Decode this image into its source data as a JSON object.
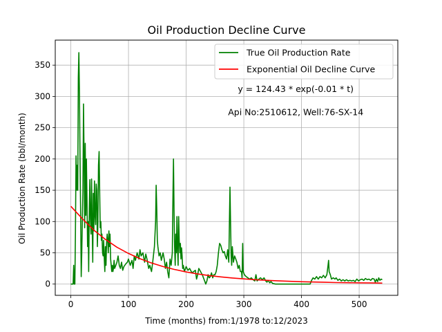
{
  "chart_data": {
    "type": "line",
    "title": "Oil Production Decline Curve",
    "xlabel": "Time (months) from:1/1978 to:12/2023",
    "ylabel": "Oil Production Rate (bbl/month)",
    "xlim": [
      -27,
      567
    ],
    "ylim": [
      -18,
      390
    ],
    "xticks": [
      0,
      100,
      200,
      300,
      400,
      500
    ],
    "yticks": [
      0,
      50,
      100,
      150,
      200,
      250,
      300,
      350
    ],
    "grid": true,
    "legend": "top-right",
    "annotations": [
      {
        "text": "y = 124.43 * exp(-0.01 * t)",
        "x": 390,
        "y": 307
      },
      {
        "text": "Api No:2510612, Well:76-SX-14",
        "x": 390,
        "y": 270
      }
    ],
    "series": [
      {
        "name": "True Oil Production Rate",
        "color": "#008000",
        "points": [
          [
            0,
            0
          ],
          [
            2,
            0
          ],
          [
            4,
            0
          ],
          [
            5,
            30
          ],
          [
            6,
            0
          ],
          [
            7,
            0
          ],
          [
            8,
            80
          ],
          [
            9,
            205
          ],
          [
            10,
            150
          ],
          [
            11,
            190
          ],
          [
            12,
            150
          ],
          [
            13,
            330
          ],
          [
            14,
            370
          ],
          [
            15,
            300
          ],
          [
            16,
            200
          ],
          [
            17,
            120
          ],
          [
            18,
            12
          ],
          [
            19,
            50
          ],
          [
            20,
            100
          ],
          [
            21,
            150
          ],
          [
            22,
            288
          ],
          [
            23,
            200
          ],
          [
            24,
            90
          ],
          [
            25,
            225
          ],
          [
            26,
            110
          ],
          [
            27,
            200
          ],
          [
            28,
            140
          ],
          [
            29,
            60
          ],
          [
            30,
            100
          ],
          [
            31,
            20
          ],
          [
            32,
            120
          ],
          [
            33,
            167
          ],
          [
            34,
            105
          ],
          [
            35,
            80
          ],
          [
            36,
            168
          ],
          [
            37,
            100
          ],
          [
            38,
            35
          ],
          [
            39,
            145
          ],
          [
            40,
            85
          ],
          [
            41,
            165
          ],
          [
            42,
            110
          ],
          [
            43,
            95
          ],
          [
            44,
            160
          ],
          [
            45,
            150
          ],
          [
            46,
            60
          ],
          [
            47,
            100
          ],
          [
            48,
            190
          ],
          [
            49,
            212
          ],
          [
            50,
            150
          ],
          [
            51,
            90
          ],
          [
            52,
            100
          ],
          [
            53,
            70
          ],
          [
            54,
            80
          ],
          [
            55,
            50
          ],
          [
            56,
            45
          ],
          [
            57,
            70
          ],
          [
            58,
            40
          ],
          [
            59,
            20
          ],
          [
            60,
            60
          ],
          [
            61,
            30
          ],
          [
            62,
            65
          ],
          [
            63,
            80
          ],
          [
            64,
            70
          ],
          [
            65,
            50
          ],
          [
            66,
            85
          ],
          [
            67,
            60
          ],
          [
            68,
            80
          ],
          [
            69,
            40
          ],
          [
            70,
            30
          ],
          [
            71,
            20
          ],
          [
            72,
            30
          ],
          [
            73,
            20
          ],
          [
            74,
            25
          ],
          [
            75,
            38
          ],
          [
            76,
            25
          ],
          [
            78,
            30
          ],
          [
            80,
            35
          ],
          [
            82,
            45
          ],
          [
            84,
            30
          ],
          [
            86,
            25
          ],
          [
            88,
            35
          ],
          [
            90,
            22
          ],
          [
            92,
            28
          ],
          [
            95,
            32
          ],
          [
            98,
            35
          ],
          [
            100,
            40
          ],
          [
            103,
            30
          ],
          [
            106,
            38
          ],
          [
            108,
            25
          ],
          [
            110,
            45
          ],
          [
            112,
            38
          ],
          [
            115,
            50
          ],
          [
            118,
            40
          ],
          [
            120,
            55
          ],
          [
            122,
            45
          ],
          [
            125,
            50
          ],
          [
            128,
            35
          ],
          [
            130,
            48
          ],
          [
            132,
            40
          ],
          [
            135,
            25
          ],
          [
            137,
            30
          ],
          [
            140,
            20
          ],
          [
            142,
            35
          ],
          [
            145,
            60
          ],
          [
            147,
            100
          ],
          [
            148,
            158
          ],
          [
            149,
            120
          ],
          [
            150,
            70
          ],
          [
            151,
            60
          ],
          [
            153,
            45
          ],
          [
            155,
            50
          ],
          [
            157,
            38
          ],
          [
            160,
            50
          ],
          [
            162,
            40
          ],
          [
            164,
            25
          ],
          [
            166,
            35
          ],
          [
            168,
            20
          ],
          [
            170,
            10
          ],
          [
            172,
            40
          ],
          [
            174,
            30
          ],
          [
            176,
            50
          ],
          [
            177,
            130
          ],
          [
            178,
            200
          ],
          [
            179,
            120
          ],
          [
            180,
            60
          ],
          [
            181,
            30
          ],
          [
            182,
            80
          ],
          [
            183,
            50
          ],
          [
            184,
            108
          ],
          [
            185,
            60
          ],
          [
            186,
            30
          ],
          [
            187,
            108
          ],
          [
            188,
            70
          ],
          [
            189,
            50
          ],
          [
            190,
            65
          ],
          [
            191,
            40
          ],
          [
            192,
            58
          ],
          [
            193,
            45
          ],
          [
            194,
            25
          ],
          [
            195,
            30
          ],
          [
            197,
            20
          ],
          [
            200,
            28
          ],
          [
            203,
            22
          ],
          [
            206,
            25
          ],
          [
            210,
            18
          ],
          [
            213,
            20
          ],
          [
            216,
            22
          ],
          [
            218,
            8
          ],
          [
            220,
            15
          ],
          [
            222,
            25
          ],
          [
            225,
            20
          ],
          [
            228,
            15
          ],
          [
            230,
            10
          ],
          [
            232,
            5
          ],
          [
            234,
            0
          ],
          [
            236,
            5
          ],
          [
            238,
            15
          ],
          [
            240,
            10
          ],
          [
            242,
            12
          ],
          [
            244,
            18
          ],
          [
            246,
            10
          ],
          [
            248,
            15
          ],
          [
            250,
            15
          ],
          [
            252,
            20
          ],
          [
            254,
            30
          ],
          [
            256,
            50
          ],
          [
            258,
            65
          ],
          [
            260,
            62
          ],
          [
            262,
            55
          ],
          [
            264,
            50
          ],
          [
            266,
            52
          ],
          [
            268,
            45
          ],
          [
            270,
            40
          ],
          [
            272,
            55
          ],
          [
            274,
            35
          ],
          [
            275,
            100
          ],
          [
            276,
            155
          ],
          [
            277,
            100
          ],
          [
            278,
            45
          ],
          [
            279,
            30
          ],
          [
            280,
            60
          ],
          [
            282,
            35
          ],
          [
            284,
            45
          ],
          [
            286,
            40
          ],
          [
            288,
            35
          ],
          [
            290,
            25
          ],
          [
            292,
            30
          ],
          [
            294,
            20
          ],
          [
            296,
            20
          ],
          [
            297,
            10
          ],
          [
            298,
            65
          ],
          [
            299,
            20
          ],
          [
            301,
            15
          ],
          [
            304,
            12
          ],
          [
            307,
            10
          ],
          [
            310,
            8
          ],
          [
            313,
            10
          ],
          [
            316,
            7
          ],
          [
            319,
            5
          ],
          [
            321,
            15
          ],
          [
            323,
            5
          ],
          [
            326,
            8
          ],
          [
            329,
            10
          ],
          [
            332,
            7
          ],
          [
            335,
            10
          ],
          [
            338,
            5
          ],
          [
            340,
            3
          ],
          [
            342,
            6
          ],
          [
            345,
            2
          ],
          [
            347,
            4
          ],
          [
            350,
            1
          ],
          [
            355,
            0
          ],
          [
            360,
            0
          ],
          [
            370,
            0
          ],
          [
            380,
            0
          ],
          [
            390,
            0
          ],
          [
            400,
            0
          ],
          [
            410,
            0
          ],
          [
            415,
            0
          ],
          [
            417,
            5
          ],
          [
            420,
            10
          ],
          [
            423,
            8
          ],
          [
            426,
            12
          ],
          [
            429,
            8
          ],
          [
            432,
            12
          ],
          [
            435,
            10
          ],
          [
            438,
            14
          ],
          [
            441,
            10
          ],
          [
            444,
            15
          ],
          [
            446,
            30
          ],
          [
            447,
            38
          ],
          [
            448,
            20
          ],
          [
            450,
            15
          ],
          [
            452,
            8
          ],
          [
            455,
            10
          ],
          [
            458,
            8
          ],
          [
            460,
            10
          ],
          [
            463,
            6
          ],
          [
            466,
            8
          ],
          [
            469,
            5
          ],
          [
            472,
            7
          ],
          [
            475,
            5
          ],
          [
            478,
            7
          ],
          [
            481,
            5
          ],
          [
            484,
            6
          ],
          [
            487,
            5
          ],
          [
            490,
            6
          ],
          [
            493,
            4
          ],
          [
            496,
            8
          ],
          [
            499,
            5
          ],
          [
            502,
            7
          ],
          [
            505,
            8
          ],
          [
            508,
            6
          ],
          [
            511,
            9
          ],
          [
            514,
            7
          ],
          [
            517,
            8
          ],
          [
            520,
            6
          ],
          [
            523,
            9
          ],
          [
            526,
            8
          ],
          [
            528,
            3
          ],
          [
            530,
            8
          ],
          [
            532,
            4
          ],
          [
            534,
            10
          ],
          [
            536,
            6
          ],
          [
            538,
            8
          ],
          [
            540,
            7
          ]
        ]
      },
      {
        "name": "Exponential Oil Decline Curve",
        "color": "#ff0000",
        "points": [
          [
            0,
            124.43
          ],
          [
            20,
            104.5
          ],
          [
            40,
            86.3
          ],
          [
            60,
            71.4
          ],
          [
            80,
            59.0
          ],
          [
            100,
            49.0
          ],
          [
            120,
            40.6
          ],
          [
            140,
            33.7
          ],
          [
            160,
            28.0
          ],
          [
            180,
            23.3
          ],
          [
            200,
            19.4
          ],
          [
            220,
            16.2
          ],
          [
            240,
            13.6
          ],
          [
            260,
            11.5
          ],
          [
            280,
            9.7
          ],
          [
            300,
            8.3
          ],
          [
            320,
            7.0
          ],
          [
            340,
            6.0
          ],
          [
            360,
            5.1
          ],
          [
            380,
            4.4
          ],
          [
            400,
            3.8
          ],
          [
            420,
            3.3
          ],
          [
            440,
            2.9
          ],
          [
            460,
            2.5
          ],
          [
            480,
            2.2
          ],
          [
            500,
            2.0
          ],
          [
            520,
            1.8
          ],
          [
            540,
            1.6
          ]
        ]
      }
    ]
  }
}
